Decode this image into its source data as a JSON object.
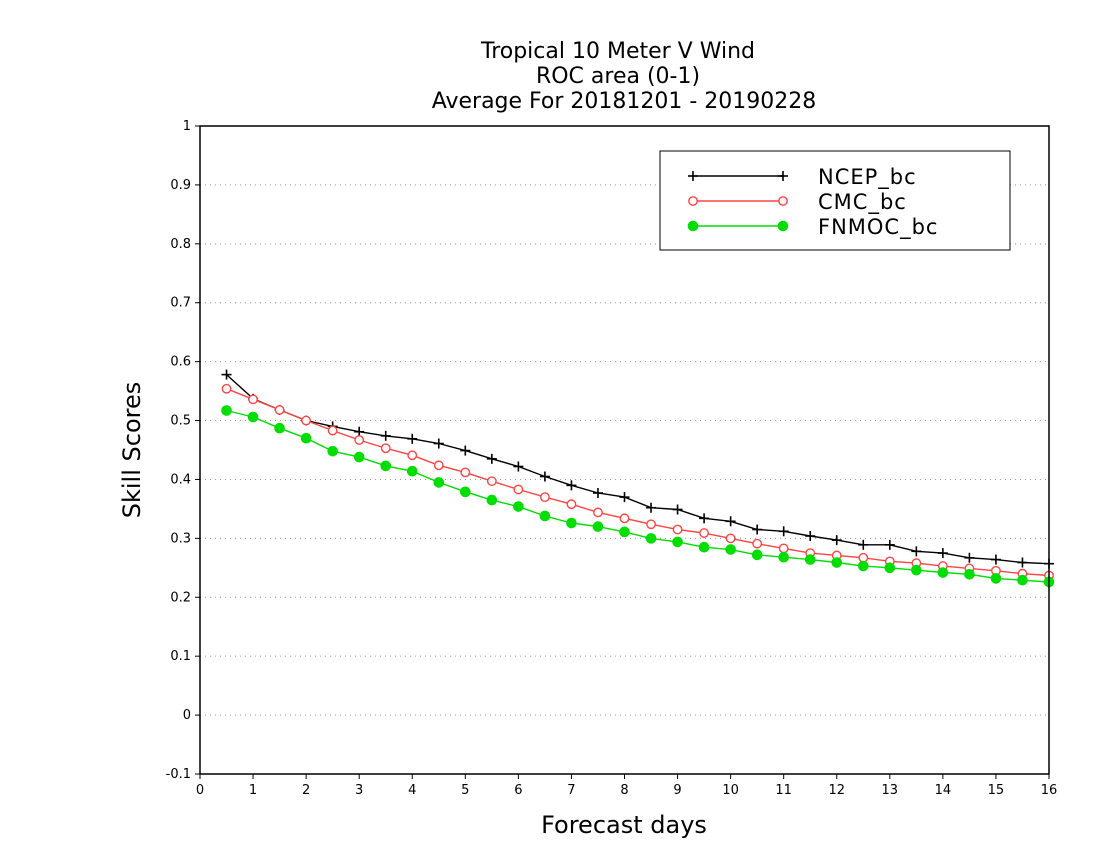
{
  "chart_data": {
    "type": "line",
    "title_lines": [
      "Tropical 10 Meter V Wind",
      "ROC area (0-1)",
      "Average For 20181201 - 20190228"
    ],
    "xlabel": "Forecast days",
    "ylabel": "Skill Scores",
    "xlim": [
      0,
      16
    ],
    "ylim": [
      -0.1,
      1
    ],
    "xticks": [
      "0",
      "1",
      "2",
      "3",
      "4",
      "5",
      "6",
      "7",
      "8",
      "9",
      "10",
      "11",
      "12",
      "13",
      "14",
      "15",
      "16"
    ],
    "yticks": [
      "-0.1",
      "0",
      "0.1",
      "0.2",
      "0.3",
      "0.4",
      "0.5",
      "0.6",
      "0.7",
      "0.8",
      "0.9",
      "1"
    ],
    "grid": "horizontal dotted",
    "legend_position": "top-right",
    "x": [
      0.5,
      1,
      1.5,
      2,
      2.5,
      3,
      3.5,
      4,
      4.5,
      5,
      5.5,
      6,
      6.5,
      7,
      7.5,
      8,
      8.5,
      9,
      9.5,
      10,
      10.5,
      11,
      11.5,
      12,
      12.5,
      13,
      13.5,
      14,
      14.5,
      15,
      15.5,
      16
    ],
    "series": [
      {
        "name": "NCEP_bc",
        "color": "#000000",
        "marker": "plus",
        "values": [
          0.578,
          0.537,
          0.518,
          0.5,
          0.49,
          0.481,
          0.474,
          0.469,
          0.461,
          0.449,
          0.435,
          0.422,
          0.405,
          0.39,
          0.377,
          0.37,
          0.352,
          0.349,
          0.334,
          0.329,
          0.315,
          0.312,
          0.304,
          0.297,
          0.289,
          0.289,
          0.278,
          0.275,
          0.267,
          0.264,
          0.259,
          0.257
        ]
      },
      {
        "name": "CMC_bc",
        "color": "#ff4444",
        "marker": "open-circle",
        "values": [
          0.554,
          0.536,
          0.518,
          0.5,
          0.483,
          0.467,
          0.453,
          0.441,
          0.424,
          0.412,
          0.397,
          0.383,
          0.37,
          0.358,
          0.344,
          0.334,
          0.324,
          0.315,
          0.309,
          0.3,
          0.291,
          0.283,
          0.275,
          0.271,
          0.267,
          0.261,
          0.258,
          0.253,
          0.249,
          0.245,
          0.24,
          0.237
        ]
      },
      {
        "name": "FNMOC_bc",
        "color": "#00dd00",
        "marker": "filled-circle",
        "values": [
          0.517,
          0.506,
          0.487,
          0.47,
          0.448,
          0.438,
          0.423,
          0.414,
          0.395,
          0.379,
          0.365,
          0.354,
          0.338,
          0.326,
          0.32,
          0.311,
          0.3,
          0.294,
          0.285,
          0.281,
          0.272,
          0.268,
          0.264,
          0.259,
          0.253,
          0.25,
          0.246,
          0.242,
          0.239,
          0.232,
          0.229,
          0.226
        ]
      }
    ]
  }
}
